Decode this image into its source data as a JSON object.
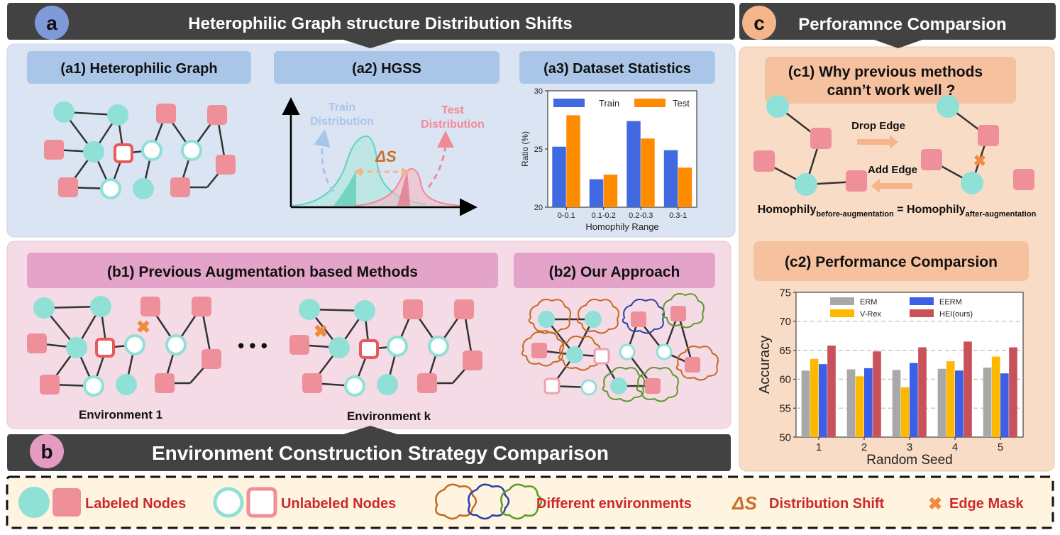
{
  "panel_a": {
    "letter": "a",
    "header": "Heterophilic Graph structure Distribution Shifts",
    "a1_title": "(a1) Heterophilic Graph",
    "a2_title": "(a2) HGSS",
    "a2_train_line1": "Train",
    "a2_train_line2": "Distribution",
    "a2_test_line1": "Test",
    "a2_test_line2": "Distribution",
    "a2_shift_label": "ΔS",
    "a3_title": "(a3) Dataset Statistics"
  },
  "panel_b": {
    "letter": "b",
    "header": "Environment Construction Strategy Comparison",
    "b1_title": "(b1)  Previous Augmentation based Methods",
    "b2_title": "(b2)  Our Approach",
    "env1_label": "Environment 1",
    "envk_label": "Environment k",
    "ellipsis": "• • •"
  },
  "panel_c": {
    "letter": "c",
    "header": "Perforamnce Comparsion",
    "c1_title_line1": "(c1)  Why previous methods",
    "c1_title_line2": "cann’t work well ?",
    "drop_edge": "Drop Edge",
    "add_edge": "Add Edge",
    "homophily_word": "Homophily",
    "sub_before": "before-augmentation",
    "equals": " = ",
    "sub_after": "after-augmentation",
    "c2_title": "(c2)  Performance Comparsion"
  },
  "legend": {
    "labeled": "Labeled Nodes",
    "unlabeled": "Unlabeled Nodes",
    "environments": "Different environments",
    "shift_symbol": "ΔS",
    "shift": "Distribution Shift",
    "edge_mask": "Edge Mask"
  },
  "colors": {
    "teal": "#8fe0d6",
    "pink": "#ee8f9a",
    "red_outline": "#e85a5a",
    "orange_x": "#f08a3c",
    "header_dark": "#424242",
    "panel_a_bg": "#dbe4f3",
    "panel_b_bg": "#f4dbe6",
    "panel_c_bg": "#f8dcc6"
  },
  "chart_data": [
    {
      "type": "bar",
      "categories": [
        "0-0.1",
        "0.1-0.2",
        "0.2-0.3",
        "0.3-1"
      ],
      "series": [
        {
          "name": "Train",
          "values": [
            25.2,
            22.4,
            27.4,
            24.9
          ],
          "color": "#4169e1"
        },
        {
          "name": "Test",
          "values": [
            27.9,
            22.8,
            25.9,
            23.4
          ],
          "color": "#ff8c00"
        }
      ],
      "xlabel": "Homophily Range",
      "ylabel": "Ratio (%)",
      "ylim": [
        20,
        30
      ],
      "yticks": [
        20,
        25,
        30
      ],
      "legend": "top"
    },
    {
      "type": "bar",
      "categories": [
        "1",
        "2",
        "3",
        "4",
        "5"
      ],
      "series": [
        {
          "name": "ERM",
          "values": [
            61.5,
            61.7,
            61.6,
            61.8,
            62.0
          ],
          "color": "#a8a8a8"
        },
        {
          "name": "V-Rex",
          "values": [
            63.5,
            60.5,
            58.6,
            63.1,
            63.9
          ],
          "color": "#ffb800"
        },
        {
          "name": "EERM",
          "values": [
            62.6,
            61.9,
            62.8,
            61.5,
            61.0
          ],
          "color": "#3d5ee6"
        },
        {
          "name": "HEI(ours)",
          "values": [
            65.8,
            64.8,
            65.5,
            66.5,
            65.5
          ],
          "color": "#c9515a"
        }
      ],
      "xlabel": "Random Seed",
      "ylabel": "Accuracy",
      "ylim": [
        50,
        75
      ],
      "yticks": [
        50,
        55,
        60,
        65,
        70,
        75
      ],
      "grid": "dashed horizontal",
      "legend": "top"
    }
  ]
}
